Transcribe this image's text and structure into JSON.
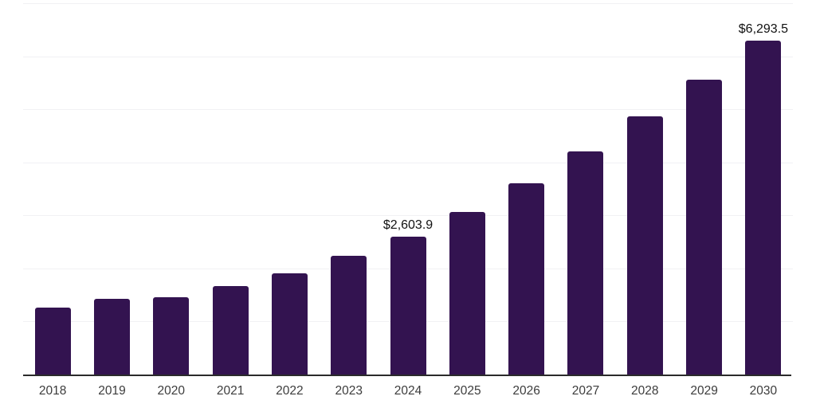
{
  "chart_data": {
    "type": "bar",
    "title": "",
    "xlabel": "",
    "ylabel": "",
    "categories": [
      "2018",
      "2019",
      "2020",
      "2021",
      "2022",
      "2023",
      "2024",
      "2025",
      "2026",
      "2027",
      "2028",
      "2029",
      "2030"
    ],
    "values": [
      1261,
      1421,
      1459,
      1662,
      1915,
      2234,
      2603.9,
      3067,
      3605,
      4208,
      4862,
      5559,
      6293.5
    ],
    "value_labels": {
      "2024": "$2,603.9",
      "2030": "$6,293.5"
    },
    "ylim": [
      0,
      7000
    ],
    "grid": {
      "visible": true,
      "interval": 1000,
      "orientation": "horizontal"
    },
    "legend": "none",
    "y_tick_labels_visible": false
  },
  "colors": {
    "bar": "#331350",
    "axis_line": "#2b2b2b",
    "gridline": "#f1f1f4",
    "value_label_text": "#111111",
    "x_tick_text": "#3c3c3c",
    "background": "#ffffff"
  }
}
